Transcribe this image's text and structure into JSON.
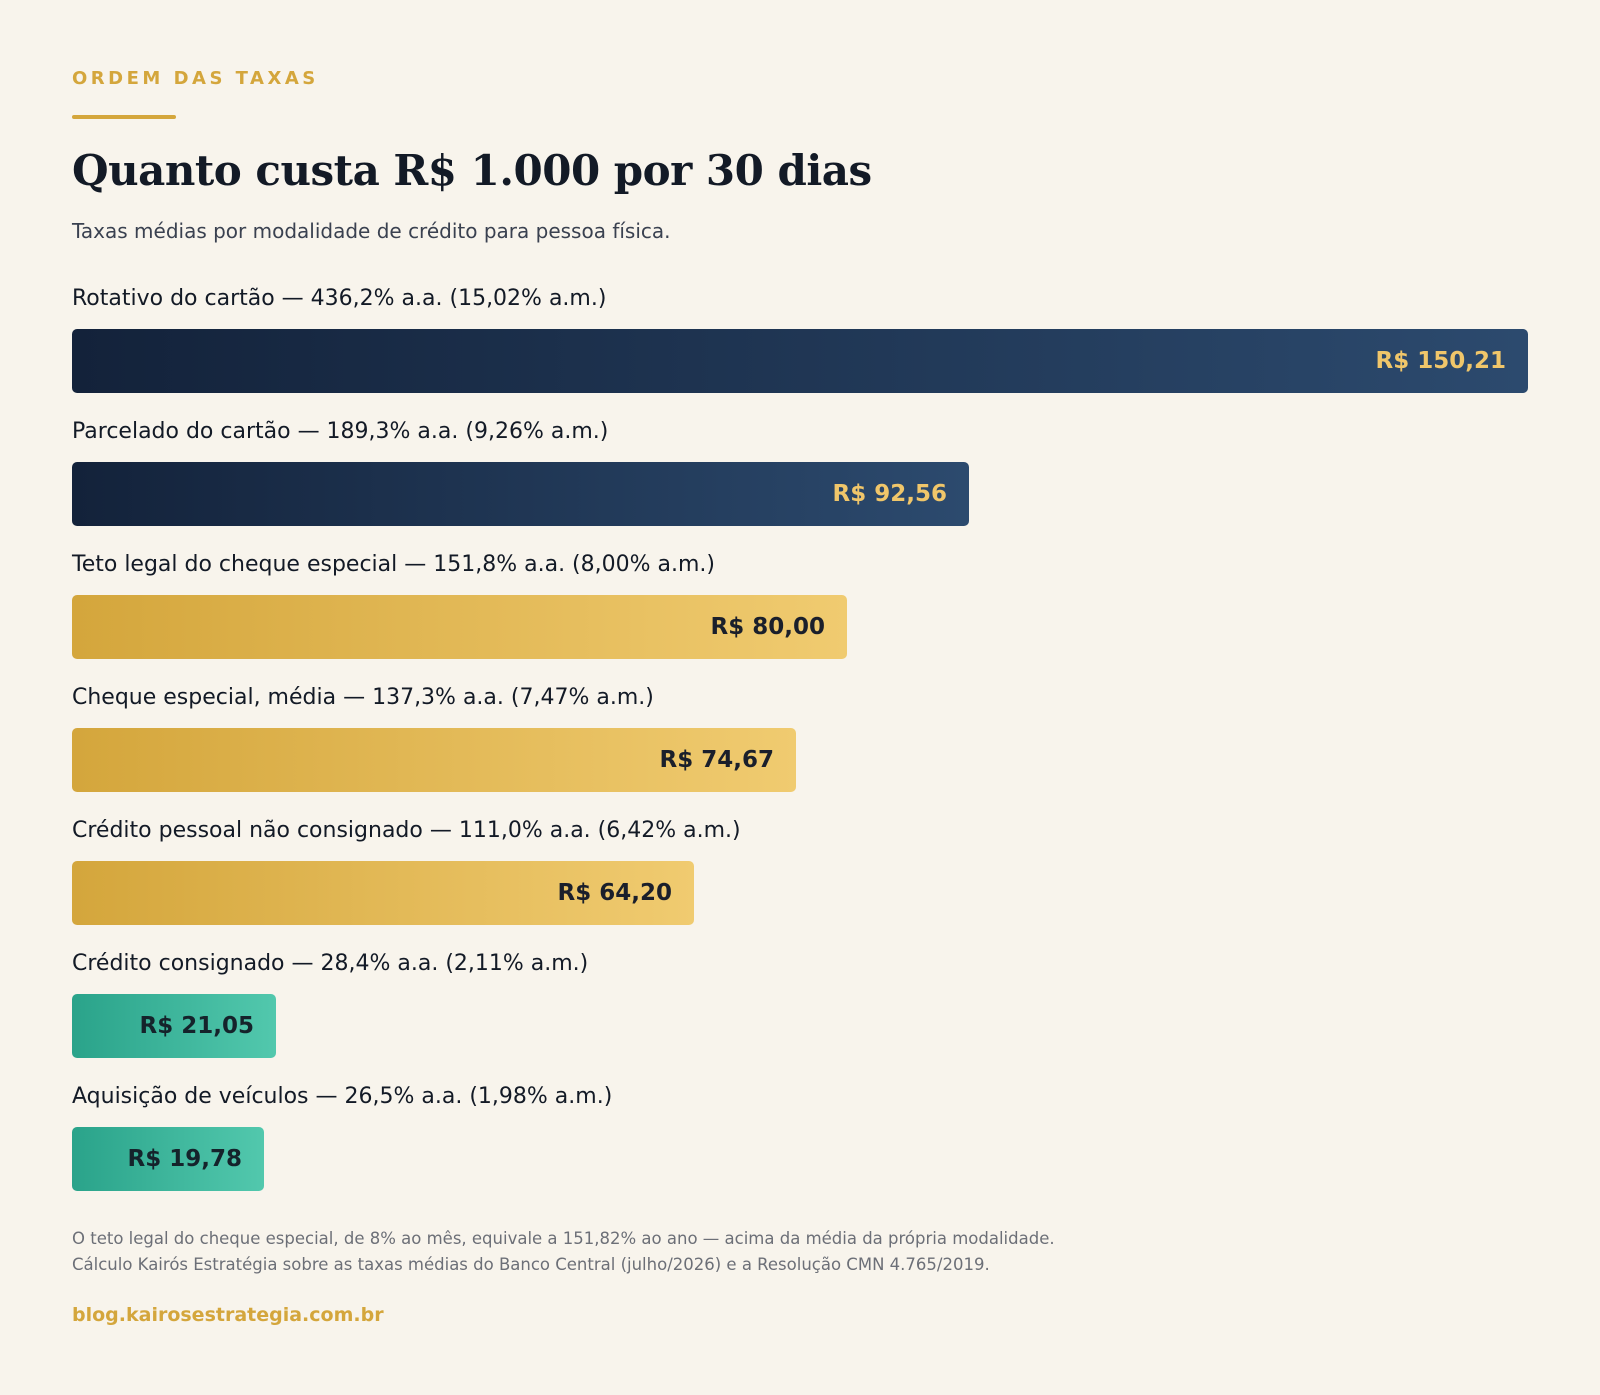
{
  "header": {
    "eyebrow": "ORDEM DAS TAXAS",
    "title": "Quanto custa R$ 1.000 por 30 dias",
    "subtitle": "Taxas médias por modalidade de crédito para pessoa física."
  },
  "colors": {
    "background": "#f8f4ec",
    "accent_gold": "#d4a63c",
    "bar_dark": "#1b3150",
    "bar_gold": "#e3b752",
    "bar_teal": "#3bb59b"
  },
  "chart_data": {
    "type": "bar",
    "orientation": "horizontal",
    "title": "Quanto custa R$ 1.000 por 30 dias",
    "subtitle": "Taxas médias por modalidade de crédito para pessoa física.",
    "xlim": [
      0,
      150.21
    ],
    "grid": false,
    "bars": [
      {
        "label": "Rotativo do cartão — 436,2% a.a. (15,02% a.m.)",
        "value": 150.21,
        "value_label": "R$ 150,21",
        "tier": "dark"
      },
      {
        "label": "Parcelado do cartão — 189,3% a.a. (9,26% a.m.)",
        "value": 92.56,
        "value_label": "R$ 92,56",
        "tier": "dark"
      },
      {
        "label": "Teto legal do cheque especial — 151,8% a.a. (8,00% a.m.)",
        "value": 80.0,
        "value_label": "R$ 80,00",
        "tier": "gold"
      },
      {
        "label": "Cheque especial, média — 137,3% a.a. (7,47% a.m.)",
        "value": 74.67,
        "value_label": "R$ 74,67",
        "tier": "gold"
      },
      {
        "label": "Crédito pessoal não consignado — 111,0% a.a. (6,42% a.m.)",
        "value": 64.2,
        "value_label": "R$ 64,20",
        "tier": "gold"
      },
      {
        "label": "Crédito consignado — 28,4% a.a. (2,11% a.m.)",
        "value": 21.05,
        "value_label": "R$ 21,05",
        "tier": "teal"
      },
      {
        "label": "Aquisição de veículos — 26,5% a.a. (1,98% a.m.)",
        "value": 19.78,
        "value_label": "R$ 19,78",
        "tier": "teal"
      }
    ]
  },
  "footer": {
    "note_line1": "O teto legal do cheque especial, de 8% ao mês, equivale a 151,82% ao ano — acima da média da própria modalidade.",
    "note_line2": "Cálculo Kairós Estratégia sobre as taxas médias do Banco Central (julho/2026) e a Resolução CMN 4.765/2019.",
    "site": "blog.kairosestrategia.com.br"
  }
}
